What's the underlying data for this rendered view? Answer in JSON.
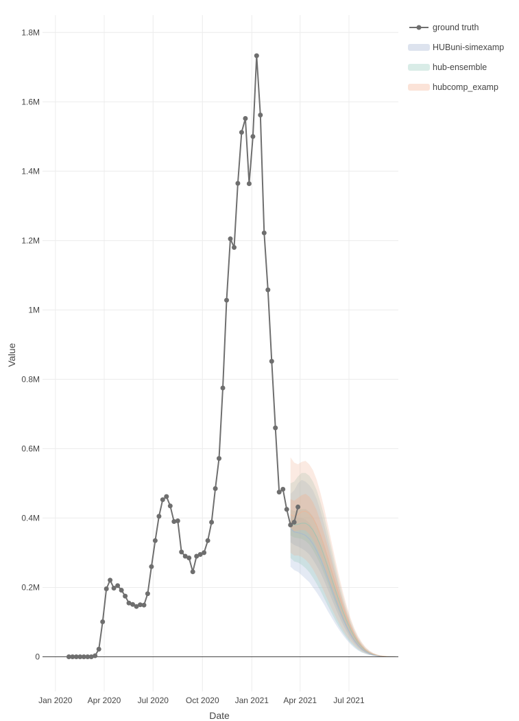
{
  "chart_data": {
    "type": "line",
    "title": "",
    "xlabel": "Date",
    "ylabel": "Value",
    "xlim": [
      "2019-12-08",
      "2021-10-01"
    ],
    "ylim": [
      -100000,
      1850000
    ],
    "grid": true,
    "legend_placement": "top-right",
    "x_ticks": [
      {
        "date": "2020-01-01",
        "label": "Jan 2020"
      },
      {
        "date": "2020-04-01",
        "label": "Apr 2020"
      },
      {
        "date": "2020-07-01",
        "label": "Jul 2020"
      },
      {
        "date": "2020-10-01",
        "label": "Oct 2020"
      },
      {
        "date": "2021-01-01",
        "label": "Jan 2021"
      },
      {
        "date": "2021-04-01",
        "label": "Apr 2021"
      },
      {
        "date": "2021-07-01",
        "label": "Jul 2021"
      }
    ],
    "y_ticks": [
      {
        "value": 0,
        "label": "0"
      },
      {
        "value": 200000,
        "label": "0.2M"
      },
      {
        "value": 400000,
        "label": "0.4M"
      },
      {
        "value": 600000,
        "label": "0.6M"
      },
      {
        "value": 800000,
        "label": "0.8M"
      },
      {
        "value": 1000000,
        "label": "1M"
      },
      {
        "value": 1200000,
        "label": "1.2M"
      },
      {
        "value": 1400000,
        "label": "1.4M"
      },
      {
        "value": 1600000,
        "label": "1.6M"
      },
      {
        "value": 1800000,
        "label": "1.8M"
      }
    ],
    "ground_truth": {
      "name": "ground truth",
      "color": "#6e6e6e",
      "dates": [
        "2020-01-26",
        "2020-02-02",
        "2020-02-09",
        "2020-02-16",
        "2020-02-23",
        "2020-03-01",
        "2020-03-08",
        "2020-03-15",
        "2020-03-22",
        "2020-03-29",
        "2020-04-05",
        "2020-04-12",
        "2020-04-19",
        "2020-04-26",
        "2020-05-03",
        "2020-05-10",
        "2020-05-17",
        "2020-05-24",
        "2020-05-31",
        "2020-06-07",
        "2020-06-14",
        "2020-06-21",
        "2020-06-28",
        "2020-07-05",
        "2020-07-12",
        "2020-07-19",
        "2020-07-26",
        "2020-08-02",
        "2020-08-09",
        "2020-08-16",
        "2020-08-23",
        "2020-08-30",
        "2020-09-06",
        "2020-09-13",
        "2020-09-20",
        "2020-09-27",
        "2020-10-04",
        "2020-10-11",
        "2020-10-18",
        "2020-10-25",
        "2020-11-01",
        "2020-11-08",
        "2020-11-15",
        "2020-11-22",
        "2020-11-29",
        "2020-12-06",
        "2020-12-13",
        "2020-12-20",
        "2020-12-27",
        "2021-01-03",
        "2021-01-10",
        "2021-01-17",
        "2021-01-24",
        "2021-01-31",
        "2021-02-07",
        "2021-02-14",
        "2021-02-21",
        "2021-02-28",
        "2021-03-07",
        "2021-03-14",
        "2021-03-21",
        "2021-03-28"
      ],
      "values": [
        0,
        0,
        0,
        0,
        0,
        0,
        0,
        3000,
        22000,
        101000,
        196000,
        221000,
        198000,
        205000,
        192000,
        175000,
        155000,
        151000,
        145000,
        150000,
        149000,
        182000,
        260000,
        335000,
        405000,
        453000,
        462000,
        435000,
        390000,
        392000,
        302000,
        290000,
        285000,
        245000,
        290000,
        295000,
        300000,
        335000,
        388000,
        485000,
        572000,
        775000,
        1028000,
        1205000,
        1180000,
        1365000,
        1512000,
        1552000,
        1364000,
        1500000,
        1733000,
        1562000,
        1222000,
        1058000,
        852000,
        660000,
        475000,
        483000,
        425000,
        380000,
        388000,
        432000
      ]
    },
    "forecast_dates": [
      "2021-03-14",
      "2021-03-21",
      "2021-03-28",
      "2021-04-04",
      "2021-04-11",
      "2021-04-18",
      "2021-04-25",
      "2021-05-02",
      "2021-05-09",
      "2021-05-16",
      "2021-05-23",
      "2021-05-30",
      "2021-06-06",
      "2021-06-13",
      "2021-06-20",
      "2021-06-27",
      "2021-07-04",
      "2021-07-11",
      "2021-07-18",
      "2021-07-25",
      "2021-08-01",
      "2021-08-08",
      "2021-08-15",
      "2021-08-22",
      "2021-08-29",
      "2021-09-05",
      "2021-09-12",
      "2021-09-19",
      "2021-09-26"
    ],
    "forecast_series": [
      {
        "name": "HUBuni-simexamp",
        "color": "#dde3ee",
        "fill_color": "#9fb3d6",
        "median": [
          370000,
          360000,
          358000,
          355000,
          350000,
          340000,
          325000,
          305000,
          282000,
          255000,
          225000,
          195000,
          165000,
          137000,
          110000,
          86000,
          65000,
          47000,
          33000,
          22000,
          14000,
          9000,
          5000,
          3000,
          1800,
          1000,
          600,
          300,
          100
        ],
        "bands": [
          {
            "level": 0.95,
            "lower": [
              260000,
              250000,
              245000,
              235000,
              225000,
              215000,
              200000,
              185000,
              168000,
              150000,
              130000,
              112000,
              94000,
              77000,
              62000,
              48000,
              36000,
              26000,
              18000,
              12000,
              8000,
              5000,
              3000,
              1800,
              1000,
              600,
              300,
              150,
              50
            ],
            "upper": [
              470000,
              480000,
              500000,
              510000,
              505000,
              495000,
              480000,
              455000,
              420000,
              380000,
              335000,
              290000,
              245000,
              200000,
              160000,
              125000,
              95000,
              70000,
              50000,
              34000,
              22000,
              14000,
              9000,
              5500,
              3300,
              2000,
              1100,
              600,
              250
            ]
          },
          {
            "level": 0.5,
            "lower": [
              330000,
              322000,
              318000,
              312000,
              305000,
              295000,
              280000,
              262000,
              242000,
              218000,
              192000,
              166000,
              140000,
              115000,
              92000,
              72000,
              54000,
              39000,
              27000,
              18000,
              12000,
              7500,
              4500,
              2600,
              1500,
              850,
              450,
              220,
              80
            ],
            "upper": [
              410000,
              402000,
              402000,
              400000,
              396000,
              386000,
              370000,
              348000,
              322000,
              292000,
              258000,
              224000,
              190000,
              158000,
              128000,
              100000,
              76000,
              55000,
              39000,
              26000,
              17000,
              11000,
              6800,
              4100,
              2400,
              1400,
              780,
              420,
              170
            ]
          }
        ]
      },
      {
        "name": "hub-ensemble",
        "color": "#d9ece7",
        "fill_color": "#8fc4b5",
        "median": [
          385000,
          380000,
          382000,
          385000,
          385000,
          378000,
          365000,
          345000,
          320000,
          290000,
          258000,
          225000,
          192000,
          160000,
          130000,
          103000,
          79000,
          58000,
          41000,
          28000,
          18000,
          11500,
          7000,
          4200,
          2400,
          1400,
          800,
          420,
          150
        ],
        "bands": [
          {
            "level": 0.95,
            "lower": [
              285000,
              275000,
              272000,
              265000,
              256000,
              244000,
              228000,
              210000,
              190000,
              168000,
              146000,
              125000,
              104000,
              85000,
              68000,
              53000,
              40000,
              29000,
              20000,
              13500,
              9000,
              5600,
              3400,
              2000,
              1150,
              650,
              350,
              170,
              60
            ],
            "upper": [
              500000,
              505000,
              520000,
              530000,
              530000,
              522000,
              505000,
              480000,
              445000,
              405000,
              358000,
              310000,
              262000,
              216000,
              174000,
              137000,
              105000,
              78000,
              56000,
              39000,
              26000,
              17000,
              10500,
              6400,
              3800,
              2300,
              1300,
              700,
              300
            ]
          },
          {
            "level": 0.5,
            "lower": [
              350000,
              344000,
              342000,
              340000,
              334000,
              324000,
              308000,
              288000,
              265000,
              238000,
              210000,
              182000,
              155000,
              128000,
              103000,
              81000,
              61000,
              45000,
              32000,
              21500,
              14000,
              9000,
              5500,
              3200,
              1850,
              1050,
              580,
              300,
              110
            ],
            "upper": [
              425000,
              420000,
              424000,
              426000,
              426000,
              418000,
              404000,
              382000,
              354000,
              322000,
              286000,
              250000,
              214000,
              179000,
              146000,
              116000,
              89000,
              66000,
              47000,
              32000,
              21000,
              13500,
              8300,
              5000,
              2900,
              1700,
              960,
              520,
              200
            ]
          }
        ]
      },
      {
        "name": "hubcomp_examp",
        "color": "#fbe3d8",
        "fill_color": "#efb396",
        "median": [
          410000,
          405000,
          410000,
          418000,
          420000,
          413000,
          400000,
          378000,
          350000,
          318000,
          283000,
          247000,
          211000,
          176000,
          143000,
          113000,
          87000,
          64000,
          45000,
          31000,
          20000,
          12500,
          7600,
          4500,
          2600,
          1500,
          850,
          450,
          160
        ],
        "bands": [
          {
            "level": 0.95,
            "lower": [
              300000,
              292000,
              292000,
              288000,
              280000,
              268000,
              252000,
              232000,
              210000,
              186000,
              162000,
              139000,
              116000,
              95000,
              76000,
              59000,
              45000,
              33000,
              23000,
              15000,
              10000,
              6300,
              3800,
              2200,
              1250,
              700,
              380,
              190,
              70
            ],
            "upper": [
              575000,
              560000,
              555000,
              562000,
              565000,
              555000,
              538000,
              510000,
              472000,
              428000,
              378000,
              328000,
              278000,
              230000,
              186000,
              146000,
              112000,
              83000,
              60000,
              42000,
              28000,
              18000,
              11200,
              6800,
              4000,
              2400,
              1350,
              750,
              320
            ]
          },
          {
            "level": 0.5,
            "lower": [
              370000,
              362000,
              364000,
              366000,
              364000,
              354000,
              338000,
              316000,
              291000,
              262000,
              232000,
              201000,
              171000,
              142000,
              115000,
              90000,
              68000,
              50000,
              35000,
              24000,
              15500,
              9800,
              6000,
              3500,
              2000,
              1150,
              630,
              330,
              120
            ],
            "upper": [
              455000,
              450000,
              458000,
              466000,
              470000,
              462000,
              446000,
              422000,
              390000,
              354000,
              315000,
              275000,
              235000,
              196000,
              160000,
              127000,
              97000,
              72000,
              51000,
              35000,
              23000,
              14500,
              8900,
              5300,
              3100,
              1800,
              1020,
              550,
              210
            ]
          }
        ]
      }
    ]
  }
}
